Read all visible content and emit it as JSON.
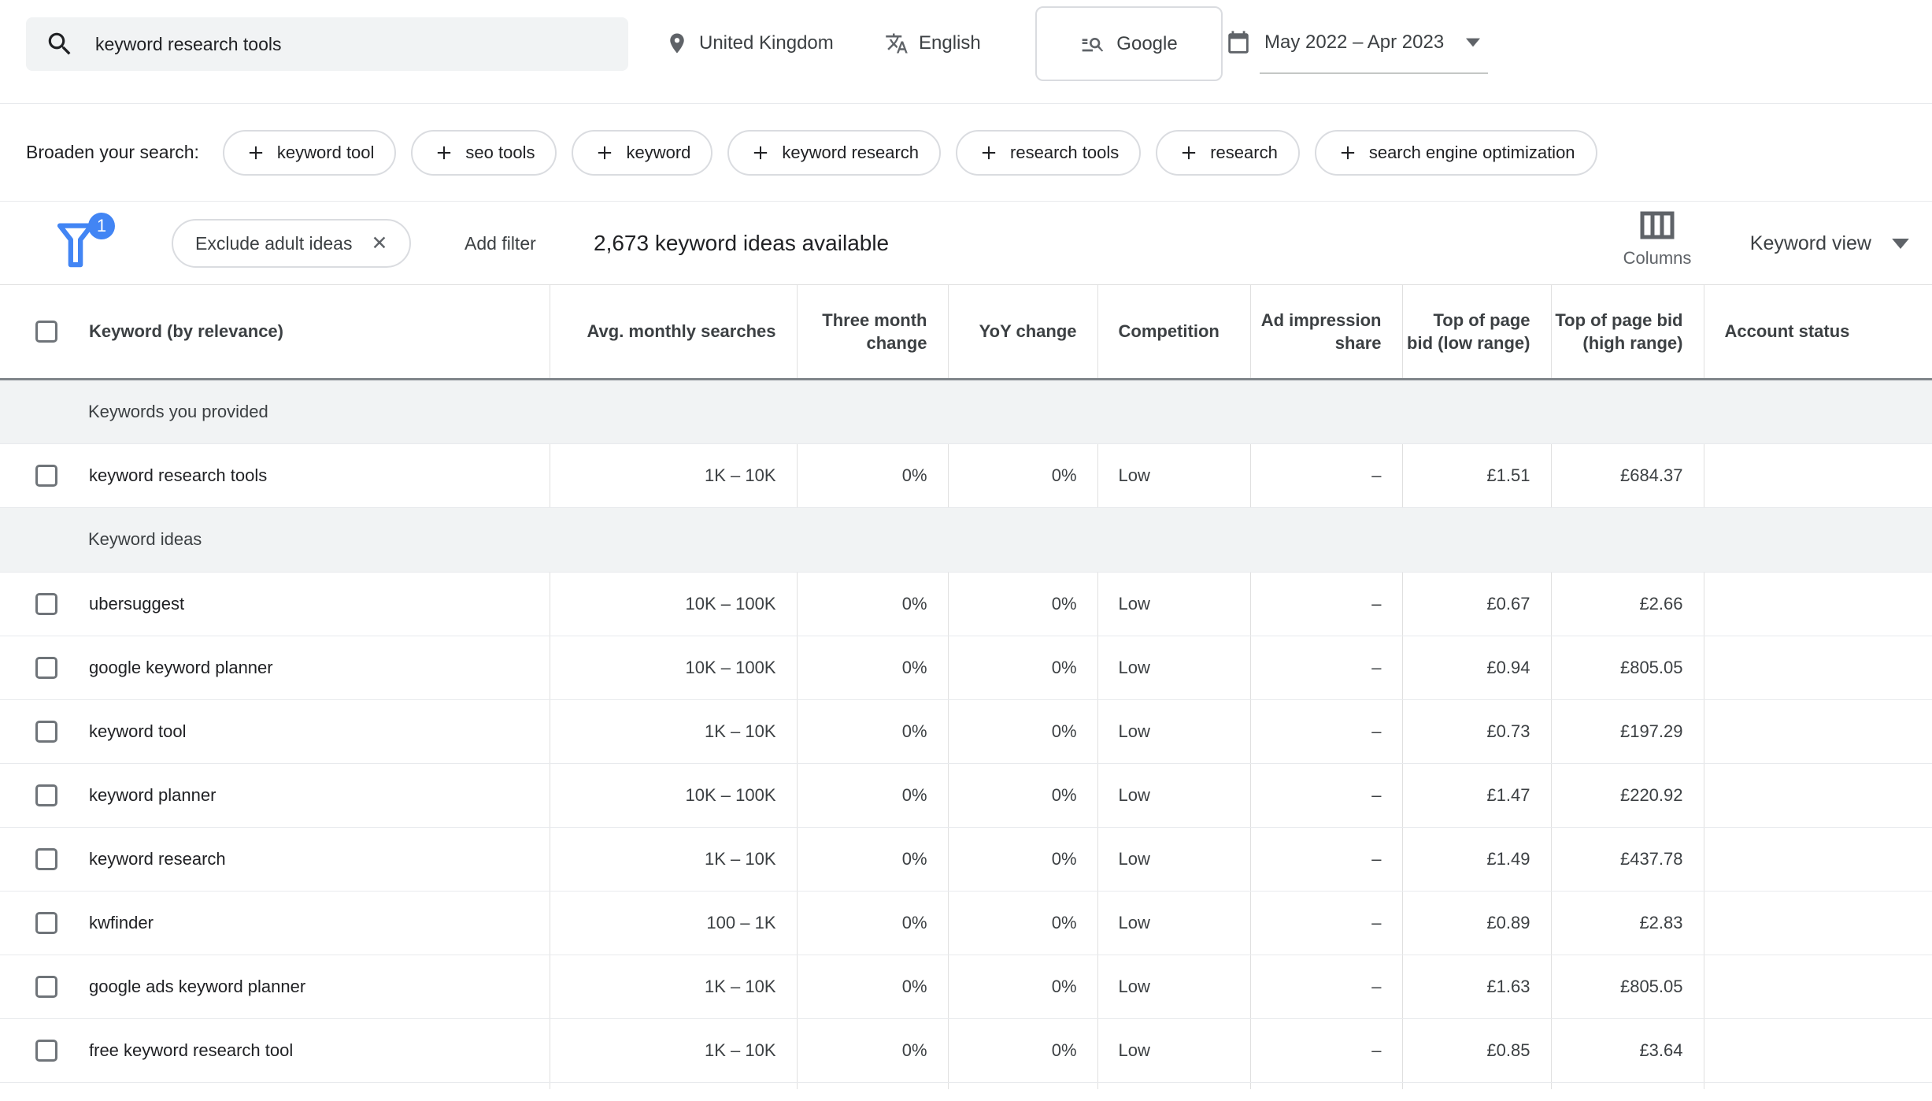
{
  "topbar": {
    "search": {
      "value": "keyword research tools"
    },
    "location": "United Kingdom",
    "language": "English",
    "network": "Google",
    "date_range": "May 2022 – Apr 2023"
  },
  "broaden": {
    "label": "Broaden your search:",
    "chips": [
      "keyword tool",
      "seo tools",
      "keyword",
      "keyword research",
      "research tools",
      "research",
      "search engine optimization"
    ]
  },
  "filterbar": {
    "filter_badge_count": "1",
    "active_filter": "Exclude adult ideas",
    "remove_filter_glyph": "✕",
    "add_filter_label": "Add filter",
    "ideas_available": "2,673 keyword ideas available",
    "columns_label": "Columns",
    "view_label": "Keyword view"
  },
  "table": {
    "headers": [
      "Keyword (by relevance)",
      "Avg. monthly searches",
      "Three month change",
      "YoY change",
      "Competition",
      "Ad impression share",
      "Top of page bid (low range)",
      "Top of page bid (high range)",
      "Account status"
    ],
    "sections": [
      {
        "label": "Keywords you provided",
        "rows": [
          {
            "keyword": "keyword research tools",
            "searches": "1K – 10K",
            "three_month": "0%",
            "yoy": "0%",
            "competition": "Low",
            "ad_share": "–",
            "bid_low": "£1.51",
            "bid_high": "£684.37",
            "account_status": ""
          }
        ]
      },
      {
        "label": "Keyword ideas",
        "rows": [
          {
            "keyword": "ubersuggest",
            "searches": "10K – 100K",
            "three_month": "0%",
            "yoy": "0%",
            "competition": "Low",
            "ad_share": "–",
            "bid_low": "£0.67",
            "bid_high": "£2.66",
            "account_status": ""
          },
          {
            "keyword": "google keyword planner",
            "searches": "10K – 100K",
            "three_month": "0%",
            "yoy": "0%",
            "competition": "Low",
            "ad_share": "–",
            "bid_low": "£0.94",
            "bid_high": "£805.05",
            "account_status": ""
          },
          {
            "keyword": "keyword tool",
            "searches": "1K – 10K",
            "three_month": "0%",
            "yoy": "0%",
            "competition": "Low",
            "ad_share": "–",
            "bid_low": "£0.73",
            "bid_high": "£197.29",
            "account_status": ""
          },
          {
            "keyword": "keyword planner",
            "searches": "10K – 100K",
            "three_month": "0%",
            "yoy": "0%",
            "competition": "Low",
            "ad_share": "–",
            "bid_low": "£1.47",
            "bid_high": "£220.92",
            "account_status": ""
          },
          {
            "keyword": "keyword research",
            "searches": "1K – 10K",
            "three_month": "0%",
            "yoy": "0%",
            "competition": "Low",
            "ad_share": "–",
            "bid_low": "£1.49",
            "bid_high": "£437.78",
            "account_status": ""
          },
          {
            "keyword": "kwfinder",
            "searches": "100 – 1K",
            "three_month": "0%",
            "yoy": "0%",
            "competition": "Low",
            "ad_share": "–",
            "bid_low": "£0.89",
            "bid_high": "£2.83",
            "account_status": ""
          },
          {
            "keyword": "google ads keyword planner",
            "searches": "1K – 10K",
            "three_month": "0%",
            "yoy": "0%",
            "competition": "Low",
            "ad_share": "–",
            "bid_low": "£1.63",
            "bid_high": "£805.05",
            "account_status": ""
          },
          {
            "keyword": "free keyword research tool",
            "searches": "1K – 10K",
            "three_month": "0%",
            "yoy": "0%",
            "competition": "Low",
            "ad_share": "–",
            "bid_low": "£0.85",
            "bid_high": "£3.64",
            "account_status": ""
          }
        ]
      }
    ]
  },
  "colors": {
    "accent_blue": "#4285f4",
    "chip_border": "#dadce0",
    "row_border": "#e8eaed",
    "column_border": "#e0e0e0",
    "header_rule": "#80868b",
    "section_bg": "#f1f3f4",
    "search_bg": "#f1f3f4",
    "text_primary": "#202124",
    "text_secondary": "#5f6368"
  }
}
